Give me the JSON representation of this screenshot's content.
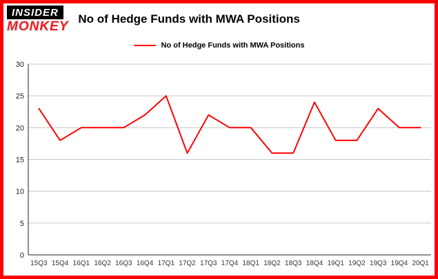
{
  "logo": {
    "line1": "INSIDER",
    "line2": "MONKEY"
  },
  "title": "No of Hedge Funds with MWA Positions",
  "legend": {
    "label": "No of Hedge Funds with MWA Positions"
  },
  "colors": {
    "line": "#ff0000",
    "frame_border": "#ff0000",
    "grid": "#c8c8c8",
    "axis": "#222222",
    "tick_text": "#333333",
    "logo_red": "#ee1c25",
    "logo_black": "#000000"
  },
  "chart_data": {
    "type": "line",
    "title": "No of Hedge Funds with MWA Positions",
    "categories": [
      "15Q3",
      "15Q4",
      "16Q1",
      "16Q2",
      "16Q3",
      "16Q4",
      "17Q1",
      "17Q2",
      "17Q3",
      "17Q4",
      "18Q1",
      "18Q2",
      "18Q3",
      "18Q4",
      "19Q1",
      "19Q2",
      "19Q3",
      "19Q4",
      "20Q1"
    ],
    "values": [
      23,
      18,
      20,
      20,
      20,
      22,
      25,
      16,
      22,
      20,
      20,
      16,
      16,
      24,
      18,
      18,
      23,
      20,
      20
    ],
    "xlabel": "",
    "ylabel": "",
    "ylim": [
      0,
      30
    ],
    "yticks": [
      0,
      5,
      10,
      15,
      20,
      25,
      30
    ],
    "grid": true,
    "legend_position": "top"
  }
}
